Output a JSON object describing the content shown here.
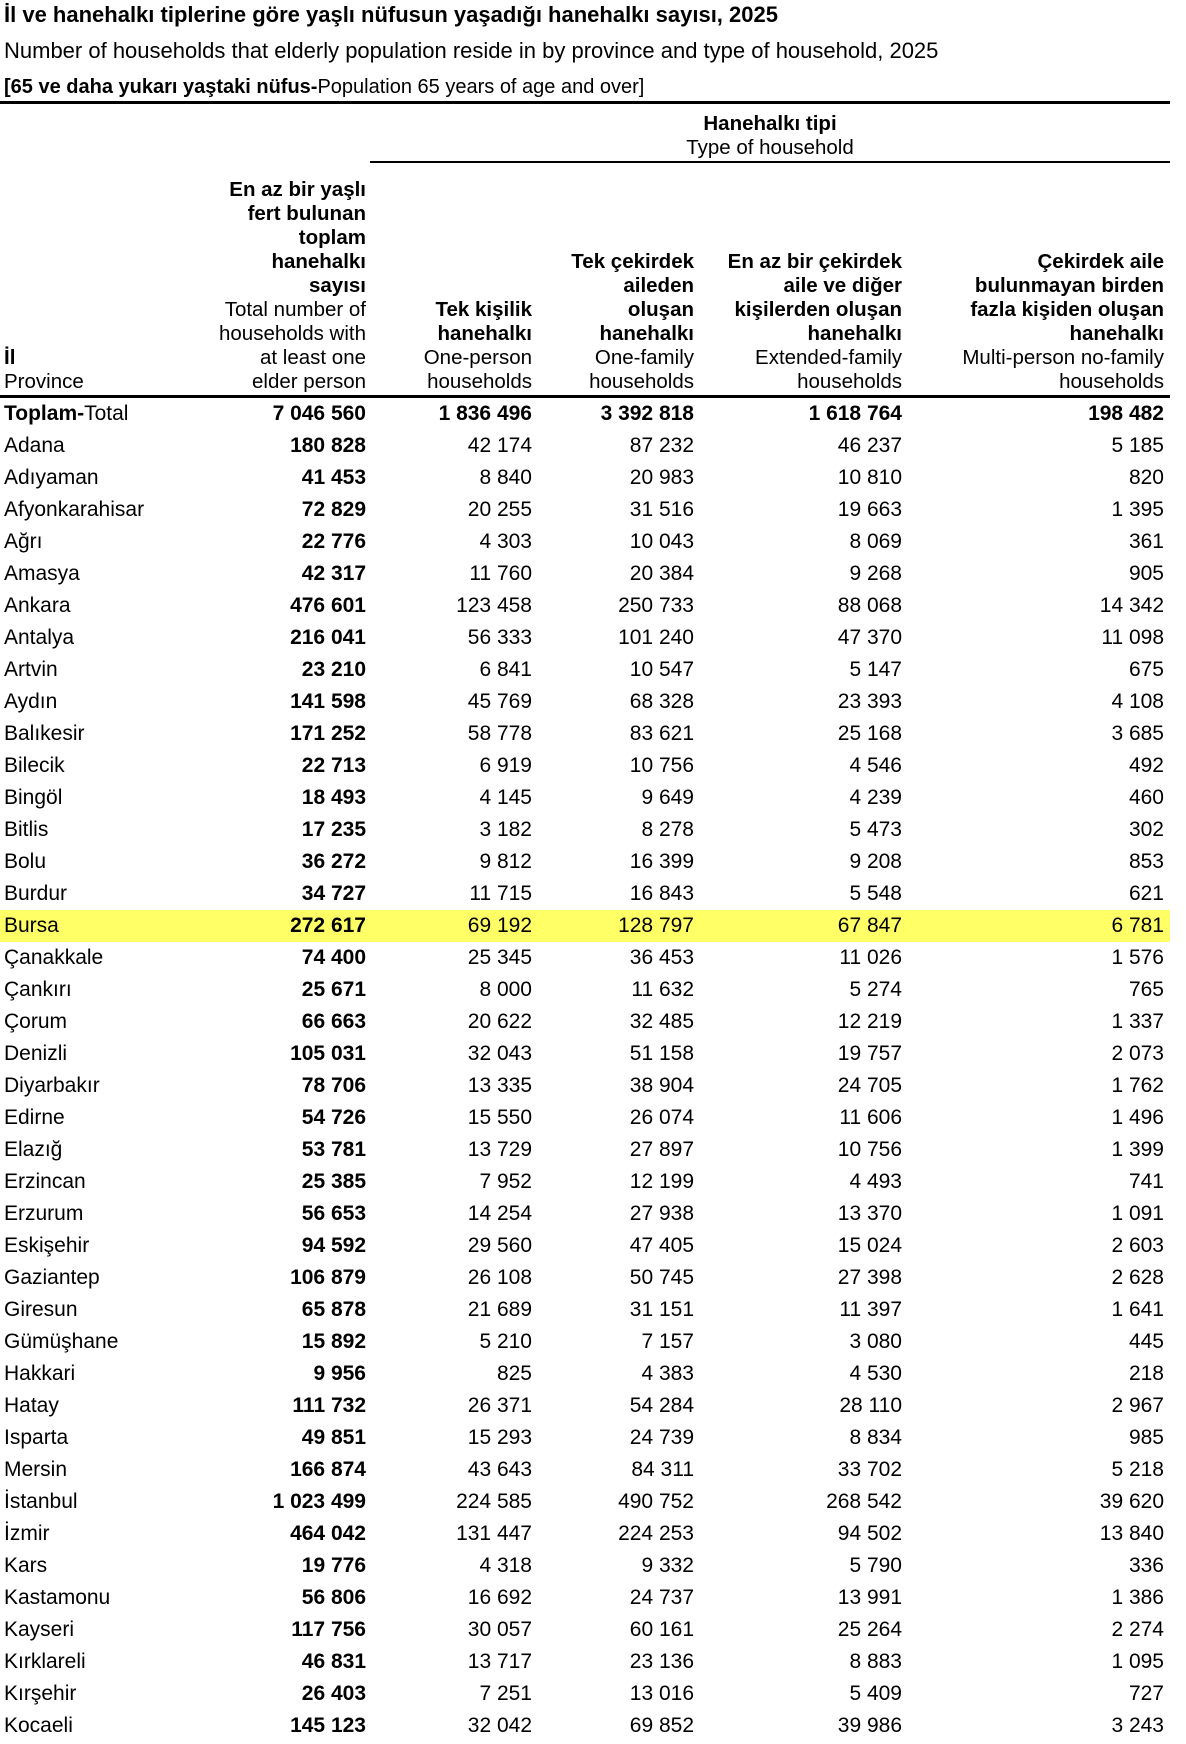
{
  "title_tr": "İl ve hanehalkı tiplerine göre yaşlı nüfusun yaşadığı hanehalkı sayısı, 2025",
  "title_en": "Number of households that elderly population reside in by province and type of household, 2025",
  "subtitle_tr": "[65 ve daha yukarı yaştaki nüfus-",
  "subtitle_en": "Population 65 years of age and over]",
  "group_header": {
    "tr": "Hanehalkı tipi",
    "en": "Type of household"
  },
  "columns": {
    "province": {
      "tr": "İl",
      "en": "Province"
    },
    "total": {
      "tr": [
        "En az bir yaşlı",
        "fert bulunan",
        "toplam",
        "hanehalkı",
        "sayısı"
      ],
      "en": [
        "Total number of",
        "households with",
        "at least one",
        "elder person"
      ]
    },
    "one_person": {
      "tr": [
        "Tek kişilik",
        "hanehalkı"
      ],
      "en": [
        "One-person",
        "households"
      ]
    },
    "one_family": {
      "tr": [
        "Tek çekirdek",
        "aileden",
        "oluşan",
        "hanehalkı"
      ],
      "en": [
        "One-family",
        "households"
      ]
    },
    "extended": {
      "tr": [
        "En az bir çekirdek",
        "aile ve diğer",
        "kişilerden oluşan",
        "hanehalkı"
      ],
      "en": [
        "Extended-family",
        "households"
      ]
    },
    "multi": {
      "tr": [
        "Çekirdek aile",
        "bulunmayan birden",
        "fazla kişiden oluşan",
        "hanehalkı"
      ],
      "en": [
        "Multi-person no-family",
        "households"
      ]
    }
  },
  "total_row": {
    "label_tr": "Toplam-",
    "label_en": "Total",
    "values": [
      "7 046 560",
      "1 836 496",
      "3 392 818",
      "1 618 764",
      "198 482"
    ]
  },
  "highlight_color": "#ffff66",
  "rows": [
    {
      "province": "Adana",
      "values": [
        "180 828",
        "42 174",
        "87 232",
        "46 237",
        "5 185"
      ]
    },
    {
      "province": "Adıyaman",
      "values": [
        "41 453",
        "8 840",
        "20 983",
        "10 810",
        "820"
      ]
    },
    {
      "province": "Afyonkarahisar",
      "values": [
        "72 829",
        "20 255",
        "31 516",
        "19 663",
        "1 395"
      ]
    },
    {
      "province": "Ağrı",
      "values": [
        "22 776",
        "4 303",
        "10 043",
        "8 069",
        "361"
      ]
    },
    {
      "province": "Amasya",
      "values": [
        "42 317",
        "11 760",
        "20 384",
        "9 268",
        "905"
      ]
    },
    {
      "province": "Ankara",
      "values": [
        "476 601",
        "123 458",
        "250 733",
        "88 068",
        "14 342"
      ]
    },
    {
      "province": "Antalya",
      "values": [
        "216 041",
        "56 333",
        "101 240",
        "47 370",
        "11 098"
      ]
    },
    {
      "province": "Artvin",
      "values": [
        "23 210",
        "6 841",
        "10 547",
        "5 147",
        "675"
      ]
    },
    {
      "province": "Aydın",
      "values": [
        "141 598",
        "45 769",
        "68 328",
        "23 393",
        "4 108"
      ]
    },
    {
      "province": "Balıkesir",
      "values": [
        "171 252",
        "58 778",
        "83 621",
        "25 168",
        "3 685"
      ]
    },
    {
      "province": "Bilecik",
      "values": [
        "22 713",
        "6 919",
        "10 756",
        "4 546",
        "492"
      ]
    },
    {
      "province": "Bingöl",
      "values": [
        "18 493",
        "4 145",
        "9 649",
        "4 239",
        "460"
      ]
    },
    {
      "province": "Bitlis",
      "values": [
        "17 235",
        "3 182",
        "8 278",
        "5 473",
        "302"
      ]
    },
    {
      "province": "Bolu",
      "values": [
        "36 272",
        "9 812",
        "16 399",
        "9 208",
        "853"
      ]
    },
    {
      "province": "Burdur",
      "values": [
        "34 727",
        "11 715",
        "16 843",
        "5 548",
        "621"
      ]
    },
    {
      "province": "Bursa",
      "values": [
        "272 617",
        "69 192",
        "128 797",
        "67 847",
        "6 781"
      ],
      "highlighted": true
    },
    {
      "province": "Çanakkale",
      "values": [
        "74 400",
        "25 345",
        "36 453",
        "11 026",
        "1 576"
      ]
    },
    {
      "province": "Çankırı",
      "values": [
        "25 671",
        "8 000",
        "11 632",
        "5 274",
        "765"
      ]
    },
    {
      "province": "Çorum",
      "values": [
        "66 663",
        "20 622",
        "32 485",
        "12 219",
        "1 337"
      ]
    },
    {
      "province": "Denizli",
      "values": [
        "105 031",
        "32 043",
        "51 158",
        "19 757",
        "2 073"
      ]
    },
    {
      "province": "Diyarbakır",
      "values": [
        "78 706",
        "13 335",
        "38 904",
        "24 705",
        "1 762"
      ]
    },
    {
      "province": "Edirne",
      "values": [
        "54 726",
        "15 550",
        "26 074",
        "11 606",
        "1 496"
      ]
    },
    {
      "province": "Elazığ",
      "values": [
        "53 781",
        "13 729",
        "27 897",
        "10 756",
        "1 399"
      ]
    },
    {
      "province": "Erzincan",
      "values": [
        "25 385",
        "7 952",
        "12 199",
        "4 493",
        "741"
      ]
    },
    {
      "province": "Erzurum",
      "values": [
        "56 653",
        "14 254",
        "27 938",
        "13 370",
        "1 091"
      ]
    },
    {
      "province": "Eskişehir",
      "values": [
        "94 592",
        "29 560",
        "47 405",
        "15 024",
        "2 603"
      ]
    },
    {
      "province": "Gaziantep",
      "values": [
        "106 879",
        "26 108",
        "50 745",
        "27 398",
        "2 628"
      ]
    },
    {
      "province": "Giresun",
      "values": [
        "65 878",
        "21 689",
        "31 151",
        "11 397",
        "1 641"
      ]
    },
    {
      "province": "Gümüşhane",
      "values": [
        "15 892",
        "5 210",
        "7 157",
        "3 080",
        "445"
      ]
    },
    {
      "province": "Hakkari",
      "values": [
        "9 956",
        "825",
        "4 383",
        "4 530",
        "218"
      ]
    },
    {
      "province": "Hatay",
      "values": [
        "111 732",
        "26 371",
        "54 284",
        "28 110",
        "2 967"
      ]
    },
    {
      "province": "Isparta",
      "values": [
        "49 851",
        "15 293",
        "24 739",
        "8 834",
        "985"
      ]
    },
    {
      "province": "Mersin",
      "values": [
        "166 874",
        "43 643",
        "84 311",
        "33 702",
        "5 218"
      ]
    },
    {
      "province": "İstanbul",
      "values": [
        "1 023 499",
        "224 585",
        "490 752",
        "268 542",
        "39 620"
      ]
    },
    {
      "province": "İzmir",
      "values": [
        "464 042",
        "131 447",
        "224 253",
        "94 502",
        "13 840"
      ]
    },
    {
      "province": "Kars",
      "values": [
        "19 776",
        "4 318",
        "9 332",
        "5 790",
        "336"
      ]
    },
    {
      "province": "Kastamonu",
      "values": [
        "56 806",
        "16 692",
        "24 737",
        "13 991",
        "1 386"
      ]
    },
    {
      "province": "Kayseri",
      "values": [
        "117 756",
        "30 057",
        "60 161",
        "25 264",
        "2 274"
      ]
    },
    {
      "province": "Kırklareli",
      "values": [
        "46 831",
        "13 717",
        "23 136",
        "8 883",
        "1 095"
      ]
    },
    {
      "province": "Kırşehir",
      "values": [
        "26 403",
        "7 251",
        "13 016",
        "5 409",
        "727"
      ]
    },
    {
      "province": "Kocaeli",
      "values": [
        "145 123",
        "32 042",
        "69 852",
        "39 986",
        "3 243"
      ]
    }
  ]
}
